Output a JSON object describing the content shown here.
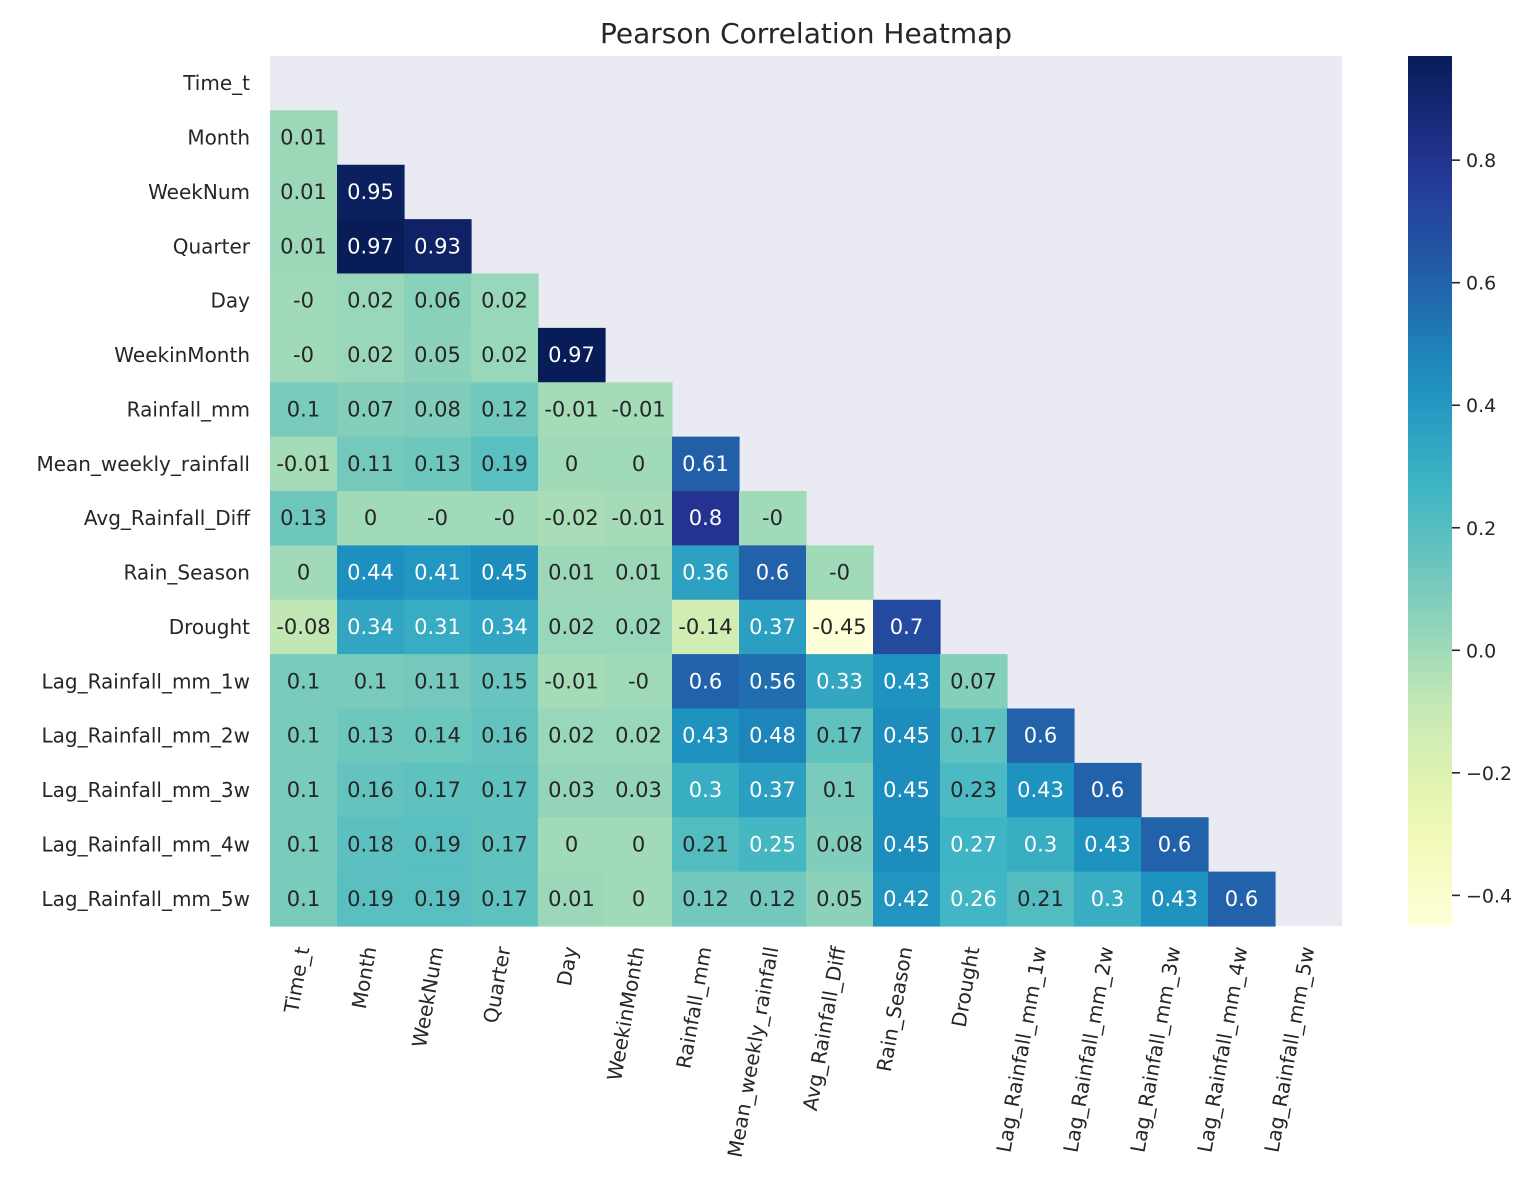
{
  "chart_data": {
    "type": "heatmap",
    "title": "Pearson Correlation Heatmap",
    "xlabel": "",
    "ylabel": "",
    "labels": [
      "Time_t",
      "Month",
      "WeekNum",
      "Quarter",
      "Day",
      "WeekinMonth",
      "Rainfall_mm",
      "Mean_weekly_rainfall",
      "Avg_Rainfall_Diff",
      "Rain_Season",
      "Drought",
      "Lag_Rainfall_mm_1w",
      "Lag_Rainfall_mm_2w",
      "Lag_Rainfall_mm_3w",
      "Lag_Rainfall_mm_4w",
      "Lag_Rainfall_mm_5w"
    ],
    "mask": "upper-triangle-including-diagonal",
    "lower_triangle": [
      [],
      [
        "0.01"
      ],
      [
        "0.01",
        "0.95"
      ],
      [
        "0.01",
        "0.97",
        "0.93"
      ],
      [
        "-0",
        "0.02",
        "0.06",
        "0.02"
      ],
      [
        "-0",
        "0.02",
        "0.05",
        "0.02",
        "0.97"
      ],
      [
        "0.1",
        "0.07",
        "0.08",
        "0.12",
        "-0.01",
        "-0.01"
      ],
      [
        "-0.01",
        "0.11",
        "0.13",
        "0.19",
        "0",
        "0",
        "0.61"
      ],
      [
        "0.13",
        "0",
        "-0",
        "-0",
        "-0.02",
        "-0.01",
        "0.8",
        "-0"
      ],
      [
        "0",
        "0.44",
        "0.41",
        "0.45",
        "0.01",
        "0.01",
        "0.36",
        "0.6",
        "-0"
      ],
      [
        "-0.08",
        "0.34",
        "0.31",
        "0.34",
        "0.02",
        "0.02",
        "-0.14",
        "0.37",
        "-0.45",
        "0.7"
      ],
      [
        "0.1",
        "0.1",
        "0.11",
        "0.15",
        "-0.01",
        "-0",
        "0.6",
        "0.56",
        "0.33",
        "0.43",
        "0.07"
      ],
      [
        "0.1",
        "0.13",
        "0.14",
        "0.16",
        "0.02",
        "0.02",
        "0.43",
        "0.48",
        "0.17",
        "0.45",
        "0.17",
        "0.6"
      ],
      [
        "0.1",
        "0.16",
        "0.17",
        "0.17",
        "0.03",
        "0.03",
        "0.3",
        "0.37",
        "0.1",
        "0.45",
        "0.23",
        "0.43",
        "0.6"
      ],
      [
        "0.1",
        "0.18",
        "0.19",
        "0.17",
        "0",
        "0",
        "0.21",
        "0.25",
        "0.08",
        "0.45",
        "0.27",
        "0.3",
        "0.43",
        "0.6"
      ],
      [
        "0.1",
        "0.19",
        "0.19",
        "0.17",
        "0.01",
        "0",
        "0.12",
        "0.12",
        "0.05",
        "0.42",
        "0.26",
        "0.21",
        "0.3",
        "0.43",
        "0.6"
      ]
    ],
    "colormap": "YlGnBu",
    "vmin": -0.45,
    "vmax": 0.97,
    "colorbar": {
      "ticks": [
        0.8,
        0.6,
        0.4,
        0.2,
        0.0,
        -0.2,
        -0.4
      ],
      "tick_labels": [
        "0.8",
        "0.6",
        "0.4",
        "0.2",
        "0.0",
        "−0.2",
        "−0.4"
      ],
      "placement": "right"
    },
    "grid": false,
    "background_color": "#eaeaf2"
  }
}
